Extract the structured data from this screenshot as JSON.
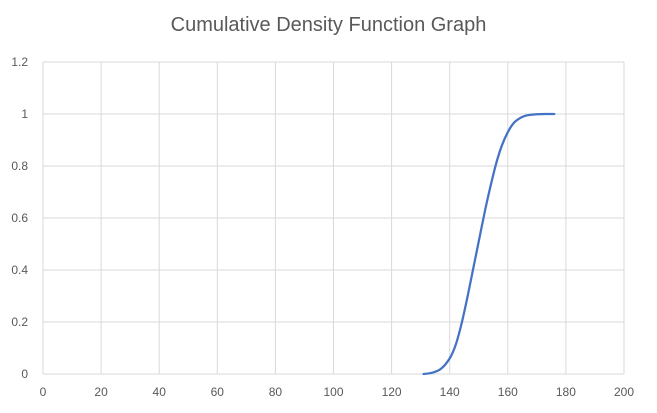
{
  "chart_data": {
    "type": "line",
    "title": "Cumulative Density Function Graph",
    "xlabel": "",
    "ylabel": "",
    "xlim": [
      0,
      200
    ],
    "ylim": [
      0,
      1.2
    ],
    "x_ticks": [
      "0",
      "20",
      "40",
      "60",
      "80",
      "100",
      "120",
      "140",
      "160",
      "180",
      "200"
    ],
    "y_ticks": [
      "0",
      "0.2",
      "0.4",
      "0.6",
      "0.8",
      "1",
      "1.2"
    ],
    "grid": true,
    "legend": "none",
    "colors": {
      "line": "#4472c4",
      "grid": "#d9d9d9",
      "text": "#595959"
    },
    "series": [
      {
        "x": [
          131,
          134,
          137,
          140,
          142,
          144,
          146,
          148,
          150,
          152,
          154,
          156,
          158,
          160,
          162,
          164,
          166,
          168,
          170,
          173,
          176
        ],
        "values": [
          0.0,
          0.005,
          0.02,
          0.06,
          0.11,
          0.19,
          0.29,
          0.4,
          0.51,
          0.62,
          0.72,
          0.81,
          0.88,
          0.93,
          0.965,
          0.983,
          0.993,
          0.997,
          0.999,
          1.0,
          1.0
        ]
      }
    ]
  }
}
